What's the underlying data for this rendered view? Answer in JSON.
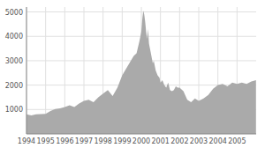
{
  "chart_data": {
    "type": "area",
    "x": [
      1994.0,
      1994.25,
      1994.5,
      1994.75,
      1995.0,
      1995.25,
      1995.5,
      1995.75,
      1996.0,
      1996.25,
      1996.5,
      1996.75,
      1997.0,
      1997.25,
      1997.5,
      1997.75,
      1998.0,
      1998.25,
      1998.5,
      1998.75,
      1999.0,
      1999.15,
      1999.3,
      1999.45,
      1999.6,
      1999.75,
      1999.9,
      2000.0,
      2000.05,
      2000.1,
      2000.15,
      2000.2,
      2000.25,
      2000.3,
      2000.35,
      2000.4,
      2000.45,
      2000.5,
      2000.55,
      2000.6,
      2000.65,
      2000.7,
      2000.75,
      2000.85,
      2000.95,
      2001.0,
      2001.1,
      2001.2,
      2001.3,
      2001.4,
      2001.5,
      2001.6,
      2001.7,
      2001.8,
      2001.9,
      2002.0,
      2002.2,
      2002.4,
      2002.6,
      2002.8,
      2003.0,
      2003.25,
      2003.5,
      2003.75,
      2004.0,
      2004.25,
      2004.5,
      2004.75,
      2005.0,
      2005.25,
      2005.5,
      2005.75,
      2005.99
    ],
    "values": [
      800,
      760,
      800,
      810,
      820,
      940,
      1020,
      1050,
      1100,
      1170,
      1100,
      1250,
      1350,
      1400,
      1300,
      1500,
      1650,
      1800,
      1550,
      1900,
      2400,
      2600,
      2800,
      3000,
      3200,
      3300,
      3800,
      4200,
      4700,
      5050,
      4900,
      4600,
      4200,
      3900,
      4300,
      3700,
      3500,
      3300,
      3100,
      2900,
      3000,
      2800,
      2600,
      2400,
      2300,
      2100,
      2200,
      2000,
      1900,
      2100,
      1800,
      1750,
      1800,
      1950,
      1900,
      1900,
      1750,
      1400,
      1300,
      1450,
      1350,
      1450,
      1600,
      1850,
      2000,
      2050,
      1950,
      2100,
      2050,
      2100,
      2050,
      2150,
      2200
    ],
    "color": "#aaaaaa",
    "xlim": [
      1994,
      2006
    ],
    "ylim": [
      0,
      5200
    ],
    "xticks": [
      1994,
      1995,
      1996,
      1997,
      1998,
      1999,
      2000,
      2001,
      2002,
      2003,
      2004,
      2005
    ],
    "yticks": [
      1000,
      2000,
      3000,
      4000,
      5000
    ],
    "grid": true
  }
}
